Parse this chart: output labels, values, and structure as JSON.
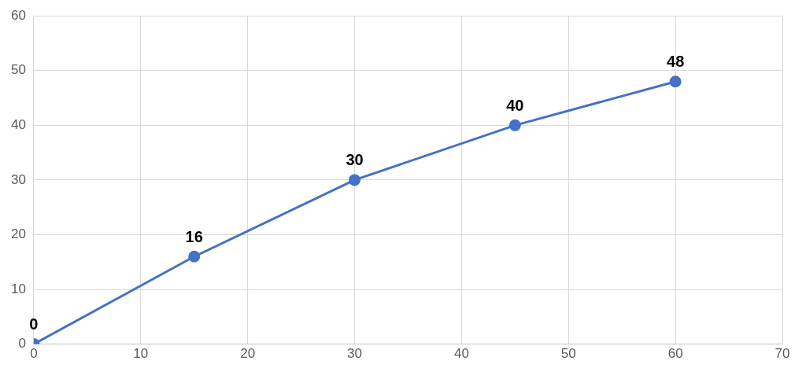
{
  "chart_data": {
    "type": "line",
    "x": [
      0,
      15,
      30,
      45,
      60
    ],
    "series": [
      {
        "color": "#4472c4",
        "values": [
          0,
          16,
          30,
          40,
          48
        ]
      }
    ],
    "xlim": [
      0,
      70
    ],
    "xticks": [
      0,
      10,
      20,
      30,
      40,
      50,
      60,
      70
    ],
    "ylim": [
      0,
      60
    ],
    "yticks": [
      0,
      10,
      20,
      30,
      40,
      50,
      60
    ],
    "grid": true,
    "legend": false,
    "marker": "circle",
    "line_style": "solid",
    "data_labels": true
  }
}
